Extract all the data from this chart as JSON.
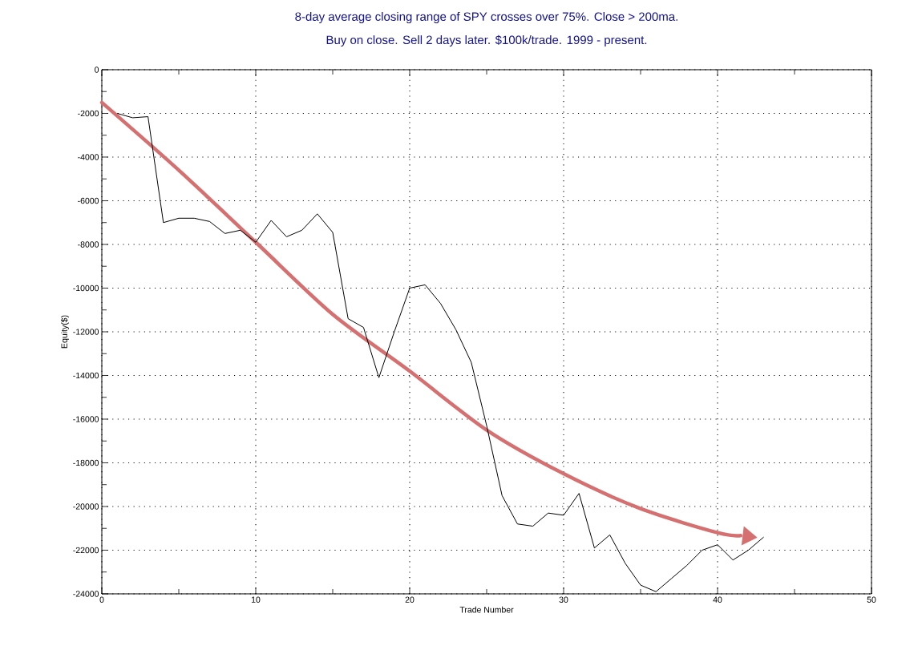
{
  "chart_data": {
    "type": "line",
    "title": "8-day average closing range of SPY crosses over 75%. Close > 200ma.",
    "subtitle": "Buy on close. Sell 2 days later. $100k/trade. 1999 - present.",
    "xlabel": "Trade Number",
    "ylabel": "Equity($)",
    "x": [
      1,
      2,
      3,
      4,
      5,
      6,
      7,
      8,
      9,
      10,
      11,
      12,
      13,
      14,
      15,
      16,
      17,
      18,
      19,
      20,
      21,
      22,
      23,
      24,
      25,
      26,
      27,
      28,
      29,
      30,
      31,
      32,
      33,
      34,
      35,
      36,
      37,
      38,
      39,
      40,
      41,
      42,
      43
    ],
    "series": [
      {
        "color": "#000000",
        "values": [
          -2000,
          -2200,
          -2150,
          -7000,
          -6800,
          -6800,
          -6950,
          -7500,
          -7350,
          -7900,
          -6900,
          -7650,
          -7350,
          -6600,
          -7450,
          -11400,
          -11800,
          -14100,
          -12000,
          -10000,
          -9850,
          -10700,
          -11900,
          -13400,
          -16300,
          -19500,
          -20800,
          -20900,
          -20300,
          -20400,
          -19400,
          -21900,
          -21300,
          -22600,
          -23600,
          -23900,
          -23300,
          -22700,
          -22000,
          -21750,
          -22450,
          -22000,
          -21400
        ]
      },
      {
        "type": "line",
        "color": "#d67070",
        "x": [
          0,
          5,
          10,
          15,
          20,
          25,
          30,
          35,
          40,
          41.5
        ],
        "values": [
          -1500,
          -4600,
          -7900,
          -11200,
          -13800,
          -16500,
          -18500,
          -20100,
          -21200,
          -21330
        ]
      }
    ],
    "xlim": [
      0,
      50
    ],
    "ylim": [
      -24000,
      0
    ],
    "xticks": [
      0,
      10,
      20,
      30,
      40,
      50
    ],
    "yticks": [
      0,
      -2000,
      -4000,
      -6000,
      -8000,
      -10000,
      -12000,
      -14000,
      -16000,
      -18000,
      -20000,
      -22000,
      -24000
    ],
    "grid": true,
    "line_style": "solid"
  }
}
